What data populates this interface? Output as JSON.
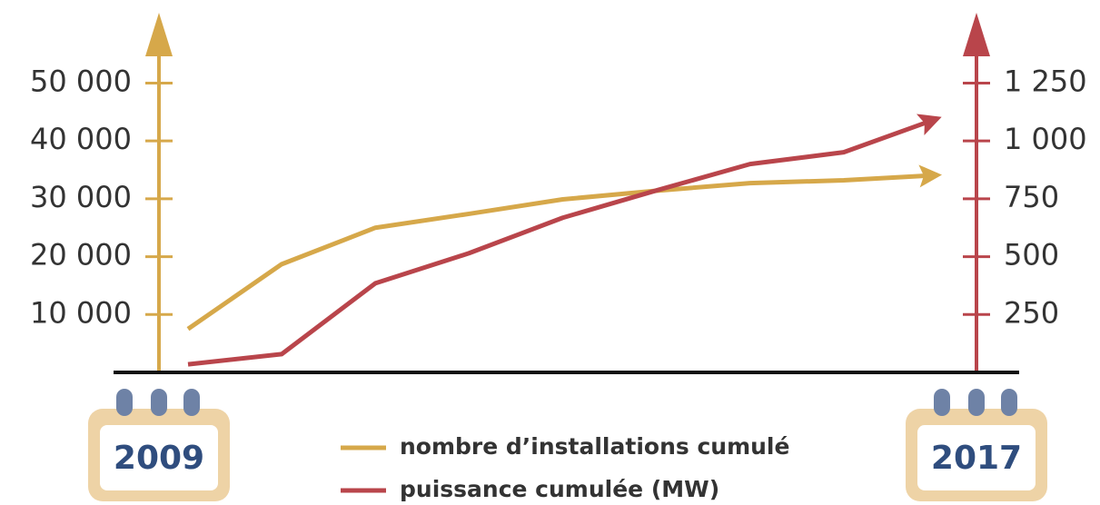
{
  "chart_data": {
    "type": "line",
    "categories": [
      "2009",
      null,
      null,
      null,
      null,
      null,
      null,
      null,
      "2017"
    ],
    "series": [
      {
        "name": "nombre d’installations cumulé",
        "color": "#d6a84a",
        "axis": "y",
        "values": [
          7500,
          18700,
          25000,
          27400,
          29900,
          31400,
          32700,
          33200,
          34100
        ]
      },
      {
        "name": "puissance cumulée (MW)",
        "color": "#b9454b",
        "axis": "y2",
        "values": [
          35,
          79,
          385,
          515,
          668,
          786,
          900,
          951,
          1097
        ]
      }
    ],
    "ylim": [
      0,
      62000
    ],
    "yticks": [
      {
        "value": 10000,
        "label": "10 000"
      },
      {
        "value": 20000,
        "label": "20 000"
      },
      {
        "value": 30000,
        "label": "30 000"
      },
      {
        "value": 40000,
        "label": "40 000"
      },
      {
        "value": 50000,
        "label": "50 000"
      }
    ],
    "y2lim": [
      0,
      1550
    ],
    "y2ticks": [
      250,
      500,
      750,
      {
        "value": 1000,
        "label": "1 000"
      },
      {
        "value": 1250,
        "label": "1 250"
      }
    ]
  }
}
